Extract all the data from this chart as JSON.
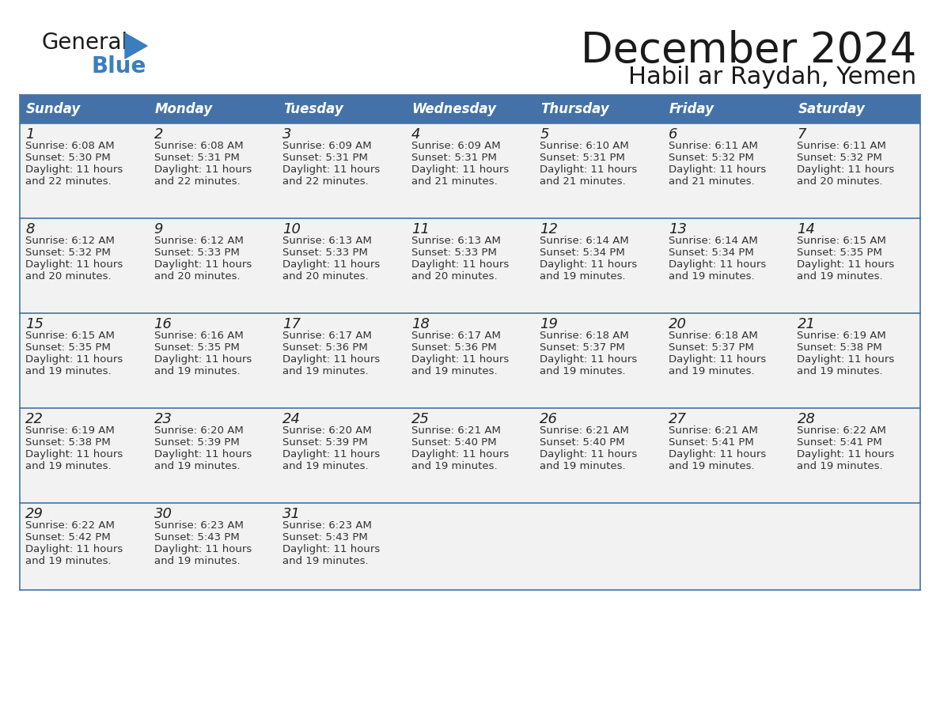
{
  "title": "December 2024",
  "subtitle": "Habil ar Raydah, Yemen",
  "days_of_week": [
    "Sunday",
    "Monday",
    "Tuesday",
    "Wednesday",
    "Thursday",
    "Friday",
    "Saturday"
  ],
  "header_bg": "#4472a8",
  "header_text": "#ffffff",
  "row_bg": "#f2f2f2",
  "border_color": "#4472a8",
  "divider_color": "#4472a8",
  "text_color": "#333333",
  "day_num_color": "#222222",
  "calendar_data": [
    [
      {
        "day": 1,
        "sunrise": "6:08 AM",
        "sunset": "5:30 PM",
        "daylight_hours": 11,
        "daylight_min": 22
      },
      {
        "day": 2,
        "sunrise": "6:08 AM",
        "sunset": "5:31 PM",
        "daylight_hours": 11,
        "daylight_min": 22
      },
      {
        "day": 3,
        "sunrise": "6:09 AM",
        "sunset": "5:31 PM",
        "daylight_hours": 11,
        "daylight_min": 22
      },
      {
        "day": 4,
        "sunrise": "6:09 AM",
        "sunset": "5:31 PM",
        "daylight_hours": 11,
        "daylight_min": 21
      },
      {
        "day": 5,
        "sunrise": "6:10 AM",
        "sunset": "5:31 PM",
        "daylight_hours": 11,
        "daylight_min": 21
      },
      {
        "day": 6,
        "sunrise": "6:11 AM",
        "sunset": "5:32 PM",
        "daylight_hours": 11,
        "daylight_min": 21
      },
      {
        "day": 7,
        "sunrise": "6:11 AM",
        "sunset": "5:32 PM",
        "daylight_hours": 11,
        "daylight_min": 20
      }
    ],
    [
      {
        "day": 8,
        "sunrise": "6:12 AM",
        "sunset": "5:32 PM",
        "daylight_hours": 11,
        "daylight_min": 20
      },
      {
        "day": 9,
        "sunrise": "6:12 AM",
        "sunset": "5:33 PM",
        "daylight_hours": 11,
        "daylight_min": 20
      },
      {
        "day": 10,
        "sunrise": "6:13 AM",
        "sunset": "5:33 PM",
        "daylight_hours": 11,
        "daylight_min": 20
      },
      {
        "day": 11,
        "sunrise": "6:13 AM",
        "sunset": "5:33 PM",
        "daylight_hours": 11,
        "daylight_min": 20
      },
      {
        "day": 12,
        "sunrise": "6:14 AM",
        "sunset": "5:34 PM",
        "daylight_hours": 11,
        "daylight_min": 19
      },
      {
        "day": 13,
        "sunrise": "6:14 AM",
        "sunset": "5:34 PM",
        "daylight_hours": 11,
        "daylight_min": 19
      },
      {
        "day": 14,
        "sunrise": "6:15 AM",
        "sunset": "5:35 PM",
        "daylight_hours": 11,
        "daylight_min": 19
      }
    ],
    [
      {
        "day": 15,
        "sunrise": "6:15 AM",
        "sunset": "5:35 PM",
        "daylight_hours": 11,
        "daylight_min": 19
      },
      {
        "day": 16,
        "sunrise": "6:16 AM",
        "sunset": "5:35 PM",
        "daylight_hours": 11,
        "daylight_min": 19
      },
      {
        "day": 17,
        "sunrise": "6:17 AM",
        "sunset": "5:36 PM",
        "daylight_hours": 11,
        "daylight_min": 19
      },
      {
        "day": 18,
        "sunrise": "6:17 AM",
        "sunset": "5:36 PM",
        "daylight_hours": 11,
        "daylight_min": 19
      },
      {
        "day": 19,
        "sunrise": "6:18 AM",
        "sunset": "5:37 PM",
        "daylight_hours": 11,
        "daylight_min": 19
      },
      {
        "day": 20,
        "sunrise": "6:18 AM",
        "sunset": "5:37 PM",
        "daylight_hours": 11,
        "daylight_min": 19
      },
      {
        "day": 21,
        "sunrise": "6:19 AM",
        "sunset": "5:38 PM",
        "daylight_hours": 11,
        "daylight_min": 19
      }
    ],
    [
      {
        "day": 22,
        "sunrise": "6:19 AM",
        "sunset": "5:38 PM",
        "daylight_hours": 11,
        "daylight_min": 19
      },
      {
        "day": 23,
        "sunrise": "6:20 AM",
        "sunset": "5:39 PM",
        "daylight_hours": 11,
        "daylight_min": 19
      },
      {
        "day": 24,
        "sunrise": "6:20 AM",
        "sunset": "5:39 PM",
        "daylight_hours": 11,
        "daylight_min": 19
      },
      {
        "day": 25,
        "sunrise": "6:21 AM",
        "sunset": "5:40 PM",
        "daylight_hours": 11,
        "daylight_min": 19
      },
      {
        "day": 26,
        "sunrise": "6:21 AM",
        "sunset": "5:40 PM",
        "daylight_hours": 11,
        "daylight_min": 19
      },
      {
        "day": 27,
        "sunrise": "6:21 AM",
        "sunset": "5:41 PM",
        "daylight_hours": 11,
        "daylight_min": 19
      },
      {
        "day": 28,
        "sunrise": "6:22 AM",
        "sunset": "5:41 PM",
        "daylight_hours": 11,
        "daylight_min": 19
      }
    ],
    [
      {
        "day": 29,
        "sunrise": "6:22 AM",
        "sunset": "5:42 PM",
        "daylight_hours": 11,
        "daylight_min": 19
      },
      {
        "day": 30,
        "sunrise": "6:23 AM",
        "sunset": "5:43 PM",
        "daylight_hours": 11,
        "daylight_min": 19
      },
      {
        "day": 31,
        "sunrise": "6:23 AM",
        "sunset": "5:43 PM",
        "daylight_hours": 11,
        "daylight_min": 19
      },
      null,
      null,
      null,
      null
    ]
  ],
  "logo_color_general": "#1a1a1a",
  "logo_color_blue": "#3a7ebf",
  "logo_triangle_color": "#3a7ebf",
  "title_color": "#1a1a1a",
  "subtitle_color": "#1a1a1a"
}
